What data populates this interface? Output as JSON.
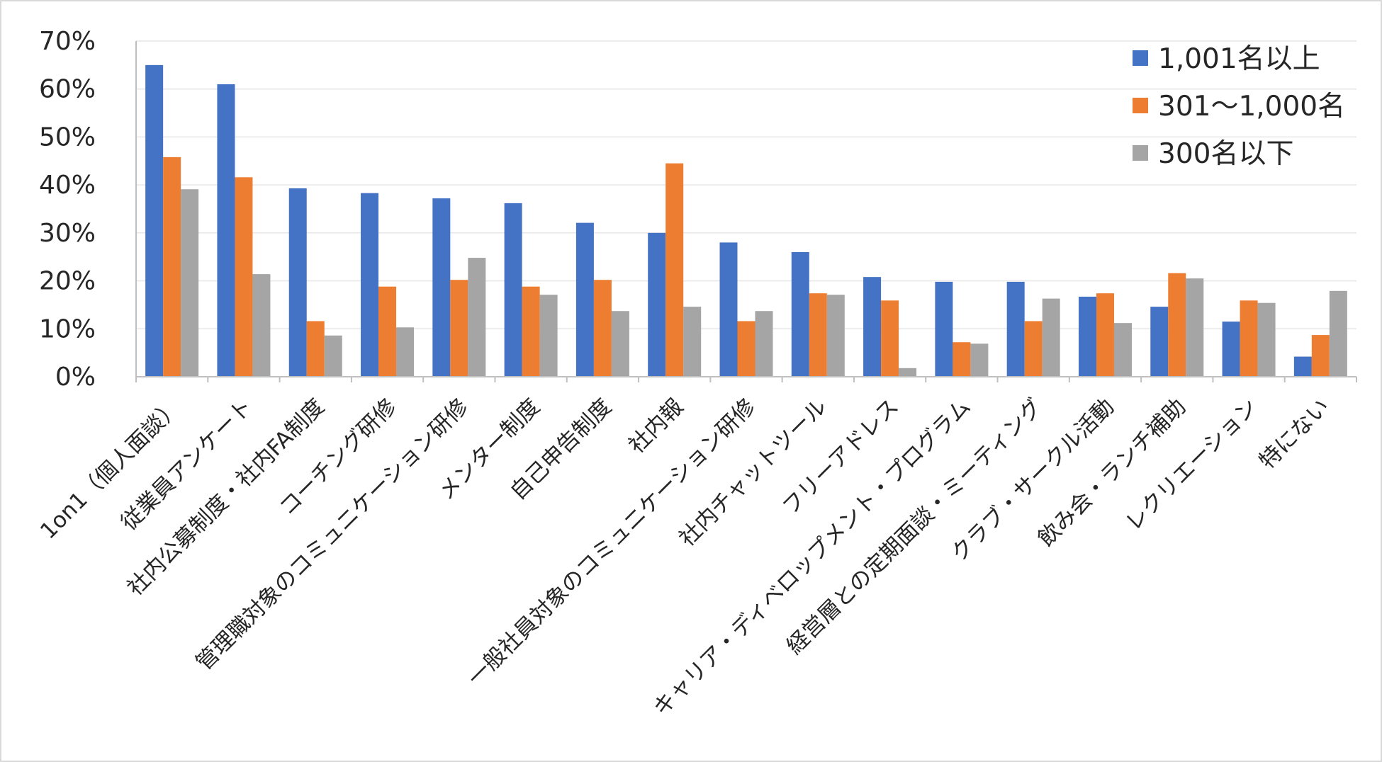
{
  "chart_data": {
    "type": "bar",
    "title": "",
    "xlabel": "",
    "ylabel": "",
    "ylim": [
      0,
      70
    ],
    "y_ticks": [
      "0%",
      "10%",
      "20%",
      "30%",
      "40%",
      "50%",
      "60%",
      "70%"
    ],
    "grid": true,
    "legend_position": "top-right",
    "categories": [
      "1on1（個人面談）",
      "従業員アンケート",
      "社内公募制度・社内FA制度",
      "コーチング研修",
      "管理職対象のコミュニケーション研修",
      "メンター制度",
      "自己申告制度",
      "社内報",
      "一般社員対象のコミュニケーション研修",
      "社内チャットツール",
      "フリーアドレス",
      "キャリア・ディベロップメント・プログラム",
      "経営層との定期面談・ミーティング",
      "クラブ・サークル活動",
      "飲み会・ランチ補助",
      "レクリエーション",
      "特にない"
    ],
    "series": [
      {
        "name": "1,001名以上",
        "color": "#4472C4",
        "values": [
          65,
          61,
          39.3,
          38.3,
          37.2,
          36.2,
          32.1,
          30,
          28,
          26,
          20.8,
          19.8,
          19.8,
          16.7,
          14.6,
          11.5,
          4.2
        ]
      },
      {
        "name": "301～1,000名",
        "color": "#ED7D31",
        "values": [
          45.8,
          41.6,
          11.6,
          18.8,
          20.2,
          18.8,
          20.2,
          44.5,
          11.6,
          17.4,
          15.9,
          7.2,
          11.6,
          17.4,
          21.6,
          15.9,
          8.7
        ]
      },
      {
        "name": "300名以下",
        "color": "#A5A5A5",
        "values": [
          39.1,
          21.4,
          8.6,
          10.3,
          24.8,
          17.1,
          13.7,
          14.6,
          13.7,
          17.1,
          1.8,
          6.9,
          16.3,
          11.2,
          20.5,
          15.4,
          17.9
        ]
      }
    ]
  }
}
